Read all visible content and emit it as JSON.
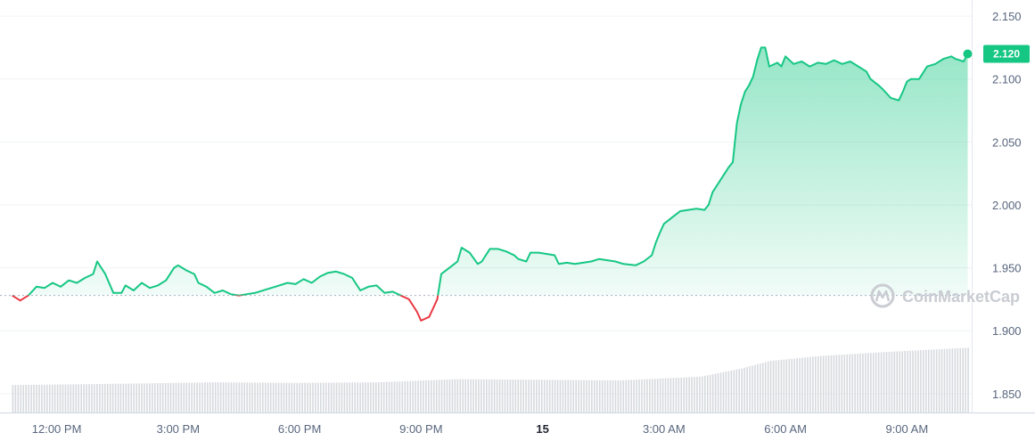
{
  "chart_data": {
    "type": "line",
    "title": "",
    "xlabel": "",
    "ylabel": "",
    "ylim": [
      1.835,
      2.16
    ],
    "y_ticks": [
      "2.150",
      "2.100",
      "2.050",
      "2.000",
      "1.950",
      "1.900",
      "1.850"
    ],
    "x_ticks": [
      {
        "label": "12:00 PM",
        "t": 1.1,
        "bold": false
      },
      {
        "label": "3:00 PM",
        "t": 4.1,
        "bold": false
      },
      {
        "label": "6:00 PM",
        "t": 7.1,
        "bold": false
      },
      {
        "label": "9:00 PM",
        "t": 10.1,
        "bold": false
      },
      {
        "label": "15",
        "t": 13.1,
        "bold": true
      },
      {
        "label": "3:00 AM",
        "t": 16.1,
        "bold": false
      },
      {
        "label": "6:00 AM",
        "t": 19.1,
        "bold": false
      },
      {
        "label": "9:00 AM",
        "t": 22.1,
        "bold": false
      }
    ],
    "x_range": [
      -0.3,
      23.7
    ],
    "reference_price": 1.928,
    "current_price": "2.120",
    "colors": {
      "up": "#16c784",
      "down": "#ea3943",
      "volume": "#d6d9de",
      "grid": "#eff2f5",
      "axis_text": "#58667e"
    },
    "series": [
      {
        "values": [
          [
            0.0,
            1.928
          ],
          [
            0.2,
            1.924
          ],
          [
            0.4,
            1.928
          ],
          [
            0.6,
            1.935
          ],
          [
            0.8,
            1.934
          ],
          [
            1.0,
            1.938
          ],
          [
            1.2,
            1.935
          ],
          [
            1.4,
            1.94
          ],
          [
            1.6,
            1.938
          ],
          [
            1.8,
            1.942
          ],
          [
            2.0,
            1.945
          ],
          [
            2.1,
            1.955
          ],
          [
            2.3,
            1.945
          ],
          [
            2.5,
            1.93
          ],
          [
            2.7,
            1.93
          ],
          [
            2.8,
            1.936
          ],
          [
            3.0,
            1.932
          ],
          [
            3.2,
            1.938
          ],
          [
            3.4,
            1.934
          ],
          [
            3.6,
            1.936
          ],
          [
            3.8,
            1.94
          ],
          [
            4.0,
            1.95
          ],
          [
            4.1,
            1.952
          ],
          [
            4.3,
            1.948
          ],
          [
            4.5,
            1.945
          ],
          [
            4.6,
            1.938
          ],
          [
            4.8,
            1.935
          ],
          [
            5.0,
            1.93
          ],
          [
            5.2,
            1.932
          ],
          [
            5.4,
            1.929
          ],
          [
            5.6,
            1.928
          ],
          [
            5.8,
            1.929
          ],
          [
            6.0,
            1.93
          ],
          [
            6.3,
            1.933
          ],
          [
            6.5,
            1.935
          ],
          [
            6.8,
            1.938
          ],
          [
            7.0,
            1.937
          ],
          [
            7.2,
            1.941
          ],
          [
            7.4,
            1.938
          ],
          [
            7.6,
            1.943
          ],
          [
            7.8,
            1.946
          ],
          [
            8.0,
            1.947
          ],
          [
            8.2,
            1.945
          ],
          [
            8.4,
            1.942
          ],
          [
            8.6,
            1.932
          ],
          [
            8.8,
            1.935
          ],
          [
            9.0,
            1.936
          ],
          [
            9.2,
            1.93
          ],
          [
            9.4,
            1.931
          ],
          [
            9.6,
            1.928
          ],
          [
            9.8,
            1.925
          ],
          [
            10.0,
            1.915
          ],
          [
            10.1,
            1.908
          ],
          [
            10.3,
            1.911
          ],
          [
            10.5,
            1.925
          ],
          [
            10.6,
            1.945
          ],
          [
            10.8,
            1.95
          ],
          [
            11.0,
            1.955
          ],
          [
            11.1,
            1.966
          ],
          [
            11.3,
            1.962
          ],
          [
            11.5,
            1.953
          ],
          [
            11.6,
            1.955
          ],
          [
            11.8,
            1.965
          ],
          [
            12.0,
            1.965
          ],
          [
            12.2,
            1.963
          ],
          [
            12.4,
            1.96
          ],
          [
            12.5,
            1.957
          ],
          [
            12.7,
            1.955
          ],
          [
            12.8,
            1.962
          ],
          [
            13.0,
            1.962
          ],
          [
            13.2,
            1.961
          ],
          [
            13.4,
            1.96
          ],
          [
            13.5,
            1.953
          ],
          [
            13.7,
            1.954
          ],
          [
            13.9,
            1.953
          ],
          [
            14.1,
            1.954
          ],
          [
            14.3,
            1.955
          ],
          [
            14.5,
            1.957
          ],
          [
            14.7,
            1.956
          ],
          [
            14.9,
            1.955
          ],
          [
            15.1,
            1.953
          ],
          [
            15.4,
            1.952
          ],
          [
            15.6,
            1.955
          ],
          [
            15.8,
            1.96
          ],
          [
            15.9,
            1.97
          ],
          [
            16.0,
            1.978
          ],
          [
            16.1,
            1.985
          ],
          [
            16.3,
            1.99
          ],
          [
            16.5,
            1.995
          ],
          [
            16.7,
            1.996
          ],
          [
            16.9,
            1.997
          ],
          [
            17.1,
            1.996
          ],
          [
            17.2,
            2.0
          ],
          [
            17.3,
            2.01
          ],
          [
            17.5,
            2.02
          ],
          [
            17.7,
            2.03
          ],
          [
            17.8,
            2.034
          ],
          [
            17.9,
            2.065
          ],
          [
            18.0,
            2.08
          ],
          [
            18.1,
            2.09
          ],
          [
            18.2,
            2.095
          ],
          [
            18.3,
            2.102
          ],
          [
            18.4,
            2.115
          ],
          [
            18.5,
            2.125
          ],
          [
            18.6,
            2.125
          ],
          [
            18.7,
            2.11
          ],
          [
            18.9,
            2.113
          ],
          [
            19.0,
            2.11
          ],
          [
            19.1,
            2.118
          ],
          [
            19.3,
            2.112
          ],
          [
            19.5,
            2.114
          ],
          [
            19.7,
            2.11
          ],
          [
            19.9,
            2.113
          ],
          [
            20.1,
            2.112
          ],
          [
            20.3,
            2.115
          ],
          [
            20.5,
            2.112
          ],
          [
            20.7,
            2.114
          ],
          [
            20.9,
            2.11
          ],
          [
            21.1,
            2.106
          ],
          [
            21.2,
            2.1
          ],
          [
            21.4,
            2.095
          ],
          [
            21.5,
            2.092
          ],
          [
            21.7,
            2.085
          ],
          [
            21.9,
            2.083
          ],
          [
            22.0,
            2.09
          ],
          [
            22.1,
            2.098
          ],
          [
            22.2,
            2.1
          ],
          [
            22.4,
            2.1
          ],
          [
            22.6,
            2.11
          ],
          [
            22.8,
            2.112
          ],
          [
            23.0,
            2.116
          ],
          [
            23.2,
            2.118
          ],
          [
            23.3,
            2.116
          ],
          [
            23.5,
            2.114
          ],
          [
            23.6,
            2.12
          ]
        ]
      }
    ],
    "volume_baseline": 1.835,
    "volume_levels": [
      [
        0.0,
        1.8568
      ],
      [
        3.0,
        1.858
      ],
      [
        5.0,
        1.859
      ],
      [
        7.0,
        1.8585
      ],
      [
        9.0,
        1.859
      ],
      [
        11.0,
        1.8615
      ],
      [
        13.0,
        1.861
      ],
      [
        15.0,
        1.8605
      ],
      [
        17.0,
        1.8635
      ],
      [
        18.0,
        1.87
      ],
      [
        18.7,
        1.876
      ],
      [
        20.0,
        1.88
      ],
      [
        21.5,
        1.883
      ],
      [
        23.6,
        1.8865
      ]
    ]
  },
  "watermark": {
    "text": "CoinMarketCap",
    "logo": "coinmarketcap-logo-icon"
  }
}
